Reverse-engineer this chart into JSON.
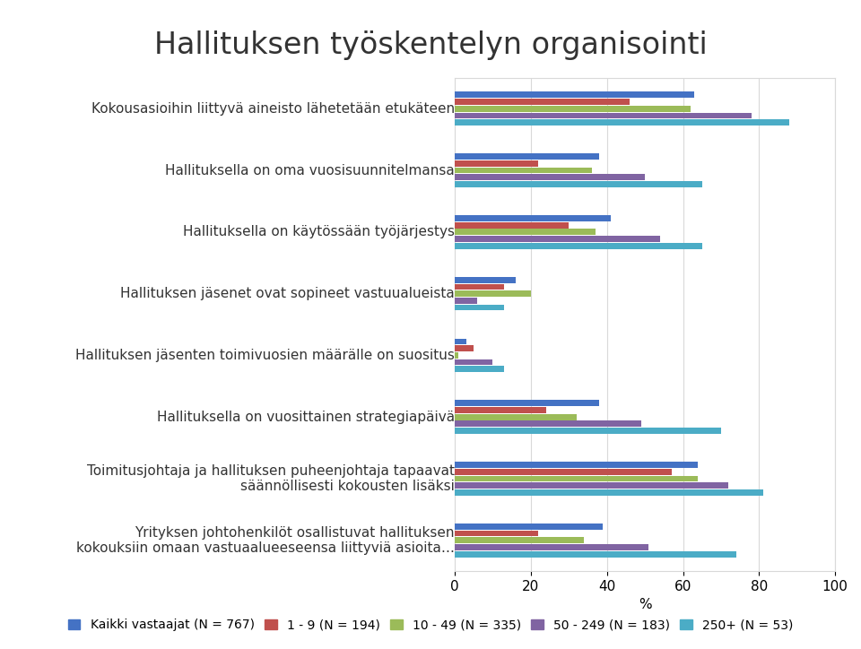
{
  "title": "Hallituksen työskentelyn organisointi",
  "categories": [
    "Kokousasioihin liittyvä aineisto lähetetään etukäteen",
    "Hallituksella on oma vuosisuunnitelmansa",
    "Hallituksella on käytössään työjärjestys",
    "Hallituksen jäsenet ovat sopineet vastuualueista",
    "Hallituksen jäsenten toimivuosien määrälle on suositus",
    "Hallituksella on vuosittainen strategiapäivä",
    "Toimitusjohtaja ja hallituksen puheenjohtaja tapaavat\nsäännöllisesti kokousten lisäksi",
    "Yrityksen johtohenkilöt osallistuvat hallituksen\nkokouksiin omaan vastuaalueeseensa liittyviä asioita…"
  ],
  "series": {
    "Kaikki vastaajat (N = 767)": [
      63,
      38,
      41,
      16,
      3,
      38,
      64,
      39
    ],
    "1 - 9 (N = 194)": [
      46,
      22,
      30,
      13,
      5,
      24,
      57,
      22
    ],
    "10 - 49 (N = 335)": [
      62,
      36,
      37,
      20,
      1,
      32,
      64,
      34
    ],
    "50 - 249 (N = 183)": [
      78,
      50,
      54,
      6,
      10,
      49,
      72,
      51
    ],
    "250+ (N = 53)": [
      88,
      65,
      65,
      13,
      13,
      70,
      81,
      74
    ]
  },
  "colors": {
    "Kaikki vastaajat (N = 767)": "#4472C4",
    "1 - 9 (N = 194)": "#C0504D",
    "10 - 49 (N = 335)": "#9BBB59",
    "50 - 249 (N = 183)": "#8064A2",
    "250+ (N = 53)": "#4BACC6"
  },
  "xlabel": "%",
  "xlim": [
    0,
    100
  ],
  "xticks": [
    0,
    20,
    40,
    60,
    80,
    100
  ],
  "background_color": "#FFFFFF",
  "grid_color": "#D9D9D9",
  "title_fontsize": 24,
  "label_fontsize": 11,
  "tick_fontsize": 11,
  "legend_fontsize": 10
}
